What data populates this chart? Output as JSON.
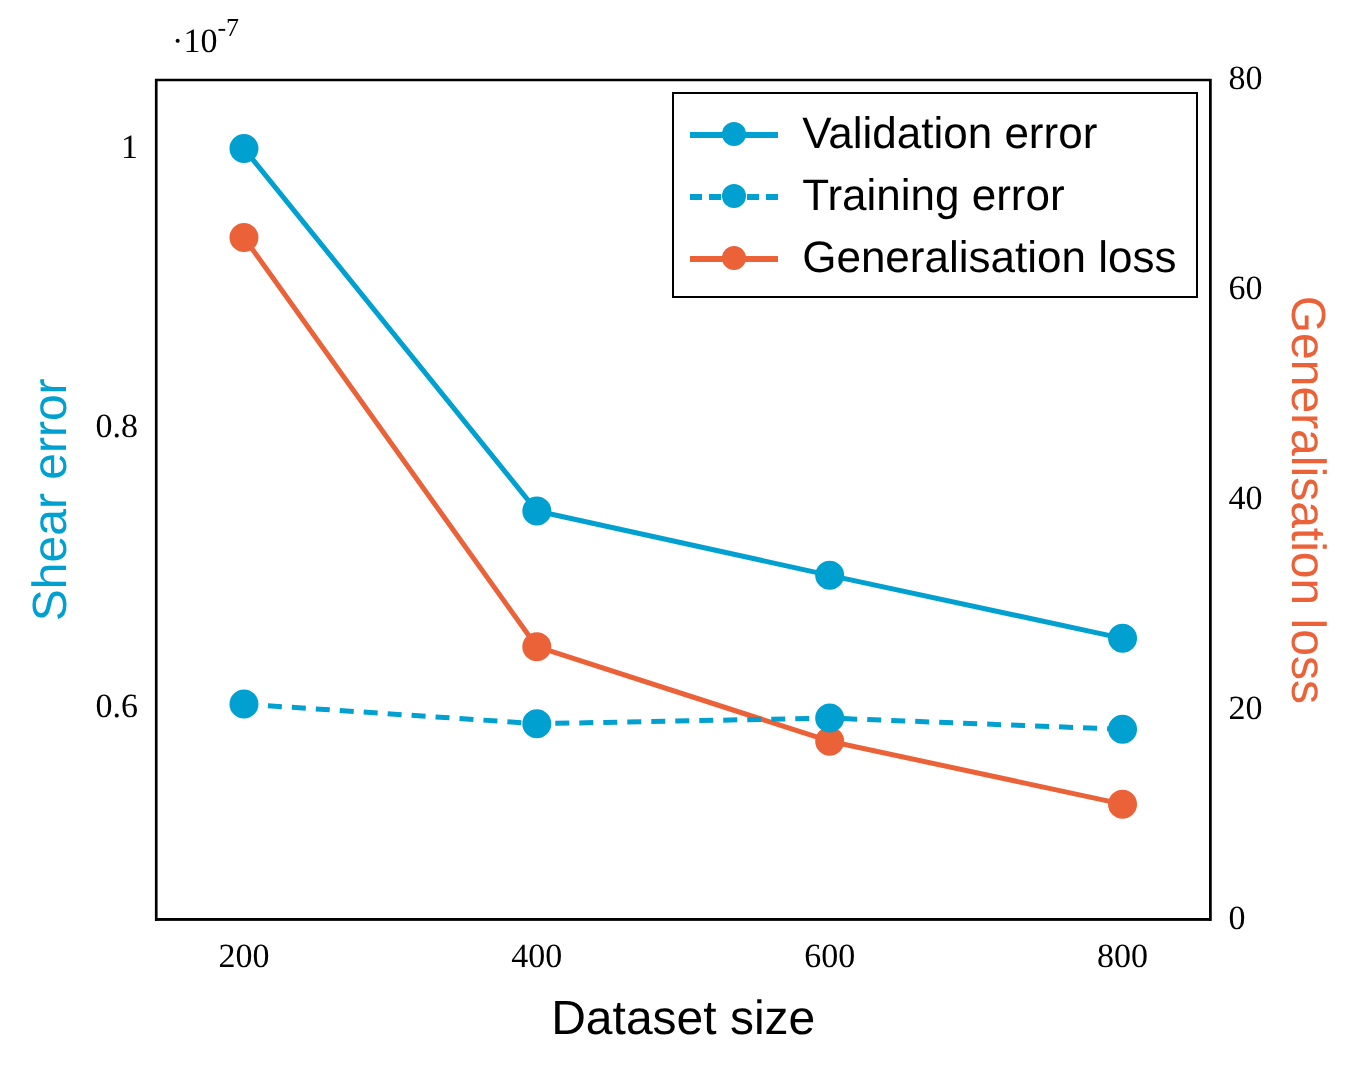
{
  "chart_data": {
    "type": "line",
    "xlabel": "Dataset size",
    "ylabel": "Shear error",
    "y2label": "Generalisation loss",
    "x": [
      200,
      400,
      600,
      800
    ],
    "series": [
      {
        "name": "Validation error",
        "color": "#00a0d0",
        "values": [
          1.0,
          0.741,
          0.695,
          0.65
        ],
        "line_style": "solid"
      },
      {
        "name": "Training error",
        "color": "#00a0d0",
        "values": [
          0.603,
          0.589,
          0.593,
          0.585
        ],
        "line_style": "dashed"
      },
      {
        "name": "Generalisation loss",
        "color": "#eb6238",
        "values": [
          65,
          26,
          17,
          11
        ],
        "axis": "y2",
        "line_style": "solid"
      }
    ],
    "xlim": [
      140,
      860
    ],
    "xticks": [
      200,
      400,
      600,
      800
    ],
    "ylim": [
      0.449,
      1.049
    ],
    "yticks": [
      0.6,
      0.8,
      {
        "value": 1,
        "label": "1"
      }
    ],
    "y2lim": [
      0,
      80
    ],
    "y2ticks": [
      0,
      20,
      40,
      60,
      80
    ],
    "annotations": [
      "·10$^{-7}$"
    ],
    "marker": "circle",
    "legend": "top right",
    "grid": false
  }
}
